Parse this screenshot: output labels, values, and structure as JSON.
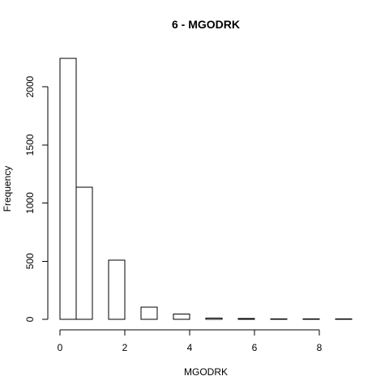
{
  "chart_data": {
    "type": "bar",
    "title": "6 - MGODRK",
    "xlabel": "MGODRK",
    "ylabel": "Frequency",
    "bin_edges": [
      0,
      0.5,
      1,
      1.5,
      2,
      2.5,
      3,
      3.5,
      4,
      4.5,
      5,
      5.5,
      6,
      6.5,
      7,
      7.5,
      8,
      8.5,
      9
    ],
    "values": [
      2245,
      1135,
      0,
      510,
      0,
      105,
      0,
      45,
      0,
      10,
      0,
      7,
      0,
      4,
      0,
      2,
      0,
      2
    ],
    "xlim": [
      0,
      9
    ],
    "ylim": [
      0,
      2245
    ],
    "x_ticks": [
      0,
      2,
      4,
      6,
      8
    ],
    "x_tick_labels": [
      "0",
      "2",
      "4",
      "6",
      "8"
    ],
    "y_ticks": [
      0,
      500,
      1000,
      1500,
      2000
    ],
    "y_tick_labels": [
      "0",
      "500",
      "1000",
      "1500",
      "2000"
    ],
    "grid": false,
    "bar_fill": "#ffffff",
    "bar_stroke": "#000000"
  }
}
